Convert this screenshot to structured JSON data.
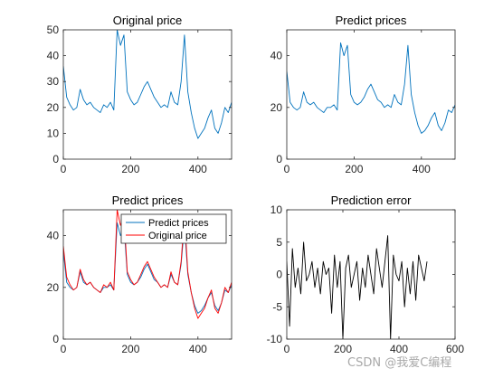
{
  "figure": {
    "background": "#ffffff",
    "watermark": "CSDN @我爱C编程"
  },
  "chart_data": [
    {
      "type": "line",
      "title": "Original price",
      "xlabel": "",
      "ylabel": "",
      "xlim": [
        0,
        500
      ],
      "ylim": [
        0,
        50
      ],
      "xticks": [
        0,
        200,
        400
      ],
      "yticks": [
        0,
        10,
        20,
        30,
        40,
        50
      ],
      "legend": null,
      "series": [
        {
          "color": "#0072bd",
          "x_start": 0,
          "x_step": 10,
          "values": [
            36,
            24,
            21,
            19,
            20,
            27,
            23,
            21,
            22,
            20,
            19,
            18,
            21,
            20,
            22,
            19,
            50,
            44,
            48,
            26,
            23,
            21,
            22,
            25,
            28,
            30,
            27,
            24,
            22,
            20,
            21,
            20,
            26,
            22,
            21,
            30,
            48,
            26,
            18,
            12,
            8,
            10,
            12,
            16,
            19,
            12,
            10,
            14,
            20,
            18,
            22
          ]
        }
      ]
    },
    {
      "type": "line",
      "title": "Predict prices",
      "xlabel": "",
      "ylabel": "",
      "xlim": [
        0,
        500
      ],
      "ylim": [
        0,
        50
      ],
      "xticks": [
        0,
        200,
        400
      ],
      "yticks": [
        0,
        20,
        40
      ],
      "legend": null,
      "series": [
        {
          "color": "#0072bd",
          "x_start": 0,
          "x_step": 10,
          "values": [
            34,
            22,
            20,
            19,
            20,
            26,
            22,
            21,
            22,
            20,
            19,
            18,
            20,
            20,
            21,
            19,
            45,
            40,
            44,
            25,
            22,
            21,
            22,
            24,
            27,
            29,
            26,
            23,
            22,
            20,
            21,
            20,
            25,
            22,
            21,
            29,
            44,
            25,
            18,
            13,
            10,
            11,
            13,
            16,
            18,
            13,
            11,
            14,
            19,
            18,
            21
          ]
        }
      ]
    },
    {
      "type": "line",
      "title": "Predict prices",
      "xlabel": "",
      "ylabel": "",
      "xlim": [
        0,
        500
      ],
      "ylim": [
        0,
        50
      ],
      "xticks": [
        0,
        200,
        400
      ],
      "yticks": [
        0,
        20,
        40
      ],
      "legend": {
        "position": "top-right",
        "entries": [
          "Predict prices",
          "Original price"
        ]
      },
      "series": [
        {
          "name": "Predict prices",
          "color": "#0072bd",
          "x_start": 0,
          "x_step": 10,
          "values": [
            34,
            22,
            20,
            19,
            20,
            26,
            22,
            21,
            22,
            20,
            19,
            18,
            20,
            20,
            21,
            19,
            45,
            40,
            44,
            25,
            22,
            21,
            22,
            24,
            27,
            29,
            26,
            23,
            22,
            20,
            21,
            20,
            25,
            22,
            21,
            29,
            44,
            25,
            18,
            13,
            10,
            11,
            13,
            16,
            18,
            13,
            11,
            14,
            19,
            18,
            21
          ]
        },
        {
          "name": "Original price",
          "color": "#ff0000",
          "x_start": 0,
          "x_step": 10,
          "values": [
            36,
            24,
            21,
            19,
            20,
            27,
            23,
            21,
            22,
            20,
            19,
            18,
            21,
            20,
            22,
            19,
            50,
            44,
            48,
            26,
            23,
            21,
            22,
            25,
            28,
            30,
            27,
            24,
            22,
            20,
            21,
            20,
            26,
            22,
            21,
            30,
            48,
            26,
            18,
            12,
            8,
            10,
            12,
            16,
            19,
            12,
            10,
            14,
            20,
            18,
            22
          ]
        }
      ]
    },
    {
      "type": "line",
      "title": "Prediction error",
      "xlabel": "",
      "ylabel": "",
      "xlim": [
        0,
        600
      ],
      "ylim": [
        -10,
        10
      ],
      "xticks": [
        0,
        200,
        400,
        600
      ],
      "yticks": [
        -10,
        -5,
        0,
        5,
        10
      ],
      "legend": null,
      "series": [
        {
          "color": "#000000",
          "x_start": 0,
          "x_step": 10,
          "values": [
            2,
            -8,
            4,
            -2,
            1,
            -3,
            5,
            -1,
            0,
            2,
            -2,
            1,
            -3,
            2,
            0,
            1,
            -6,
            3,
            -2,
            2,
            -10,
            1,
            3,
            -2,
            0,
            2,
            -4,
            1,
            -2,
            3,
            0,
            -3,
            4,
            1,
            -2,
            2,
            6,
            -10,
            3,
            0,
            -1,
            2,
            -5,
            1,
            -3,
            2,
            -4,
            3,
            1,
            -1,
            2
          ]
        }
      ]
    }
  ]
}
